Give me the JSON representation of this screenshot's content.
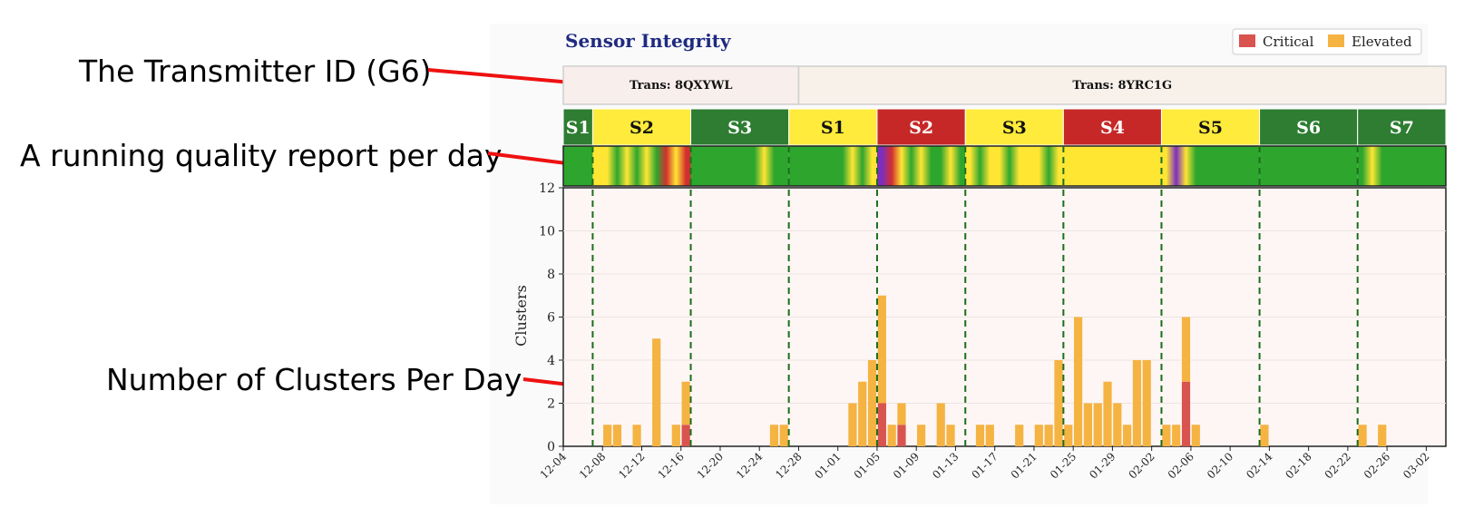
{
  "annotations": [
    {
      "text": "The Transmitter ID (G6)"
    },
    {
      "text": "A running quality report per day"
    },
    {
      "text": "Number of Clusters Per Day"
    }
  ],
  "colors": {
    "critical": "#d9534f",
    "elevated": "#f5b342",
    "title": "#1f2a80",
    "arrow": "#ee1111",
    "seg_green": "#2e7d32",
    "seg_yellow": "#ffeb3b",
    "seg_red": "#c62828",
    "quality_green": "#2ea62e",
    "quality_yellow": "#ffe633",
    "quality_red": "#d32f2f",
    "quality_purple": "#7b2fbe",
    "divider": "#1b6e1b"
  },
  "chart_data": {
    "type": "bar",
    "title": "Sensor Integrity",
    "xlabel": "",
    "ylabel": "Clusters",
    "ylim": [
      0,
      12
    ],
    "yticks": [
      0,
      2,
      4,
      6,
      8,
      10,
      12
    ],
    "grid": true,
    "legend_position": "top-right",
    "stacked": true,
    "start_date": "2024-12-04",
    "end_date": "2025-03-04",
    "xticks": [
      "12-04",
      "12-08",
      "12-12",
      "12-16",
      "12-20",
      "12-24",
      "12-28",
      "01-01",
      "01-05",
      "01-09",
      "01-13",
      "01-17",
      "01-21",
      "01-25",
      "01-29",
      "02-02",
      "02-06",
      "02-10",
      "02-14",
      "02-18",
      "02-22",
      "02-26",
      "03-02"
    ],
    "series": [
      {
        "name": "Critical",
        "color": "#d9534f",
        "dates": [
          "2024-12-16",
          "2025-01-05",
          "2025-01-07",
          "2025-02-05"
        ],
        "values": [
          1,
          2,
          1,
          3
        ]
      },
      {
        "name": "Elevated",
        "color": "#f5b342",
        "dates": [
          "2024-12-08",
          "2024-12-09",
          "2024-12-11",
          "2024-12-13",
          "2024-12-15",
          "2024-12-16",
          "2024-12-25",
          "2024-12-26",
          "2025-01-02",
          "2025-01-03",
          "2025-01-04",
          "2025-01-05",
          "2025-01-06",
          "2025-01-07",
          "2025-01-09",
          "2025-01-11",
          "2025-01-12",
          "2025-01-15",
          "2025-01-16",
          "2025-01-19",
          "2025-01-21",
          "2025-01-22",
          "2025-01-23",
          "2025-01-24",
          "2025-01-25",
          "2025-01-26",
          "2025-01-27",
          "2025-01-28",
          "2025-01-29",
          "2025-01-30",
          "2025-01-31",
          "2025-02-01",
          "2025-02-03",
          "2025-02-04",
          "2025-02-05",
          "2025-02-06",
          "2025-02-13",
          "2025-02-23",
          "2025-02-25"
        ],
        "values": [
          1,
          1,
          1,
          5,
          1,
          2,
          1,
          1,
          2,
          3,
          4,
          5,
          1,
          1,
          1,
          2,
          1,
          1,
          1,
          1,
          1,
          1,
          4,
          1,
          6,
          2,
          2,
          3,
          2,
          1,
          4,
          4,
          1,
          1,
          3,
          1,
          1,
          1,
          1
        ]
      }
    ],
    "transmitters": [
      {
        "label": "Trans: 8QXYWL",
        "start": "2024-12-04",
        "end": "2024-12-28"
      },
      {
        "label": "Trans: 8YRC1G",
        "start": "2024-12-28",
        "end": "2025-03-04"
      }
    ],
    "sensor_sessions": [
      {
        "label": "S1",
        "start": "2024-12-04",
        "end": "2024-12-07",
        "color": "green"
      },
      {
        "label": "S2",
        "start": "2024-12-07",
        "end": "2024-12-17",
        "color": "yellow"
      },
      {
        "label": "S3",
        "start": "2024-12-17",
        "end": "2024-12-27",
        "color": "green"
      },
      {
        "label": "S1",
        "start": "2024-12-27",
        "end": "2025-01-05",
        "color": "yellow"
      },
      {
        "label": "S2",
        "start": "2025-01-05",
        "end": "2025-01-14",
        "color": "red"
      },
      {
        "label": "S3",
        "start": "2025-01-14",
        "end": "2025-01-24",
        "color": "yellow"
      },
      {
        "label": "S4",
        "start": "2025-01-24",
        "end": "2025-02-03",
        "color": "red"
      },
      {
        "label": "S5",
        "start": "2025-02-03",
        "end": "2025-02-13",
        "color": "yellow"
      },
      {
        "label": "S6",
        "start": "2025-02-13",
        "end": "2025-02-23",
        "color": "green"
      },
      {
        "label": "S7",
        "start": "2025-02-23",
        "end": "2025-03-04",
        "color": "green"
      }
    ],
    "session_boundaries": [
      "2024-12-07",
      "2024-12-17",
      "2024-12-27",
      "2025-01-05",
      "2025-01-14",
      "2025-01-24",
      "2025-02-03",
      "2025-02-13",
      "2025-02-23"
    ],
    "daily_quality": [
      {
        "start": "2024-12-04",
        "end": "2024-12-07",
        "colors": [
          "green",
          "green",
          "green"
        ]
      },
      {
        "start": "2024-12-07",
        "end": "2024-12-17",
        "colors": [
          "yellow",
          "yellow",
          "green",
          "yellow",
          "green",
          "yellow",
          "green",
          "red",
          "yellow",
          "red"
        ]
      },
      {
        "start": "2024-12-17",
        "end": "2024-12-27",
        "colors": [
          "green",
          "green",
          "green",
          "green",
          "green",
          "green",
          "green",
          "yellow",
          "green",
          "green"
        ]
      },
      {
        "start": "2024-12-27",
        "end": "2025-01-05",
        "colors": [
          "green",
          "green",
          "green",
          "green",
          "green",
          "green",
          "yellow",
          "green",
          "yellow"
        ]
      },
      {
        "start": "2025-01-05",
        "end": "2025-01-14",
        "colors": [
          "purple",
          "red",
          "yellow",
          "green",
          "yellow",
          "green",
          "green",
          "yellow",
          "green"
        ]
      },
      {
        "start": "2025-01-14",
        "end": "2025-01-24",
        "colors": [
          "yellow",
          "green",
          "yellow",
          "yellow",
          "green",
          "yellow",
          "yellow",
          "yellow",
          "green",
          "yellow"
        ]
      },
      {
        "start": "2025-01-24",
        "end": "2025-02-03",
        "colors": [
          "yellow",
          "yellow",
          "yellow",
          "yellow",
          "yellow",
          "yellow",
          "yellow",
          "yellow",
          "yellow",
          "yellow"
        ]
      },
      {
        "start": "2025-02-03",
        "end": "2025-02-13",
        "colors": [
          "yellow",
          "purple",
          "yellow",
          "green",
          "green",
          "green",
          "green",
          "green",
          "green",
          "green"
        ]
      },
      {
        "start": "2025-02-13",
        "end": "2025-02-23",
        "colors": [
          "green",
          "green",
          "green",
          "green",
          "green",
          "green",
          "green",
          "green",
          "green",
          "green"
        ]
      },
      {
        "start": "2025-02-23",
        "end": "2025-03-04",
        "colors": [
          "green",
          "yellow",
          "green",
          "green",
          "green",
          "green",
          "green",
          "green",
          "green"
        ]
      }
    ]
  }
}
